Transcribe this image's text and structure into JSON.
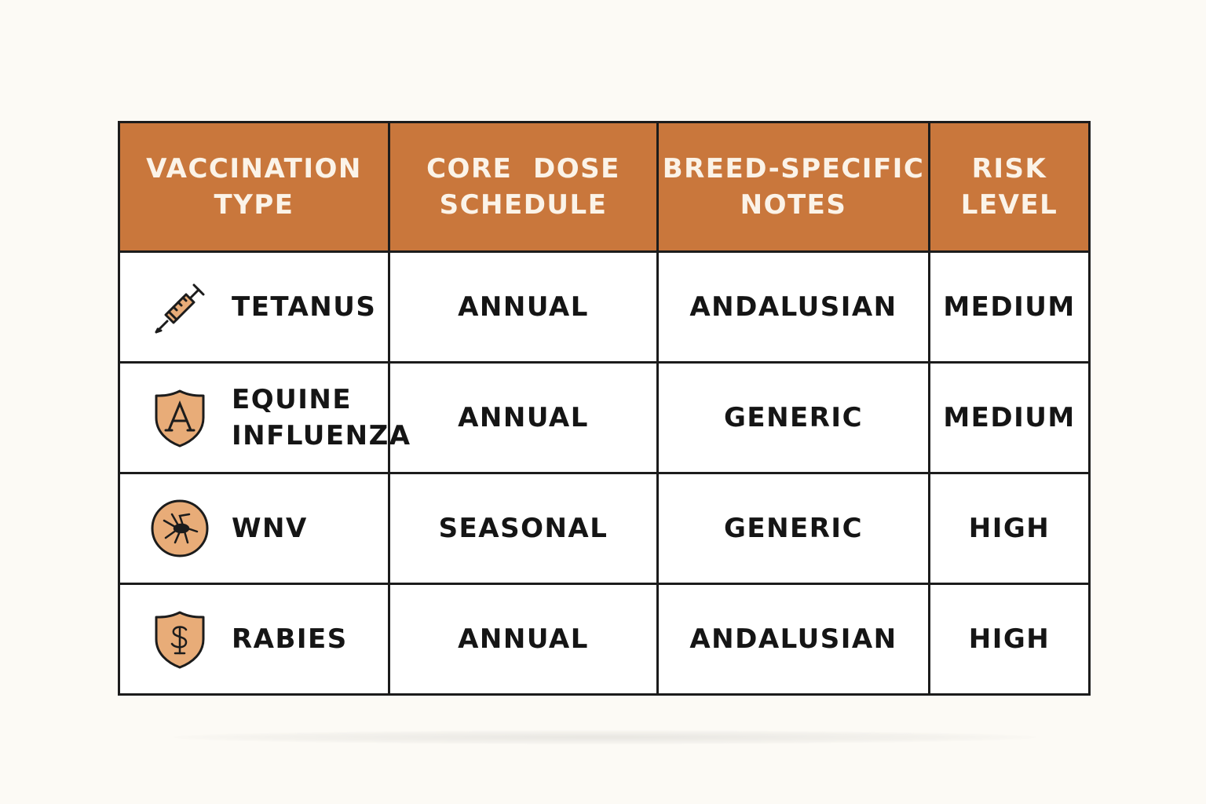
{
  "table": {
    "headers": [
      {
        "lines": [
          "VACCINATION",
          "TYPE"
        ]
      },
      {
        "lines": [
          "CORE  DOSE",
          "SCHEDULE"
        ]
      },
      {
        "lines": [
          "BREED-SPECIFIC",
          "NOTES"
        ]
      },
      {
        "lines": [
          "RISK",
          "LEVEL"
        ]
      }
    ],
    "rows": [
      {
        "icon": "syringe-icon",
        "type_lines": [
          "TETANUS"
        ],
        "schedule": "ANNUAL",
        "notes": "ANDALUSIAN",
        "risk": "MEDIUM"
      },
      {
        "icon": "shield-letter-icon",
        "type_lines": [
          "EQUINE",
          "INFLUENZA"
        ],
        "schedule": "ANNUAL",
        "notes": "GENERIC",
        "risk": "MEDIUM"
      },
      {
        "icon": "mosquito-icon",
        "type_lines": [
          "WNV"
        ],
        "schedule": "SEASONAL",
        "notes": "GENERIC",
        "risk": "HIGH"
      },
      {
        "icon": "shield-rabies-icon",
        "type_lines": [
          "RABIES"
        ],
        "schedule": "ANNUAL",
        "notes": "ANDALUSIAN",
        "risk": "HIGH"
      }
    ]
  },
  "colors": {
    "header_bg": "#c9773c",
    "header_text": "#fbf3e8",
    "icon_fill": "#e8ac78",
    "border": "#1c1c1c",
    "page_bg": "#fcfaf5"
  }
}
